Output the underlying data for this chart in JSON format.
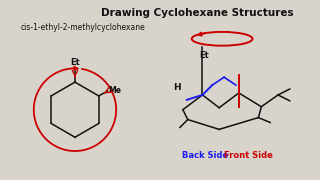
{
  "title": "Drawing Cyclohexane Structures",
  "subtitle": "cis-1-ethyl-2-methylcyclohexane",
  "bg_color": "#d8d4cc",
  "title_fontsize": 7.5,
  "subtitle_fontsize": 5.5,
  "back_side_label": "Back Side",
  "front_side_label": "Front Side",
  "back_side_color": "#1a1aee",
  "front_side_color": "#cc0000",
  "label_fontsize": 6.0,
  "black": "#111111",
  "red": "#cc0000",
  "blue": "#1a1aee"
}
